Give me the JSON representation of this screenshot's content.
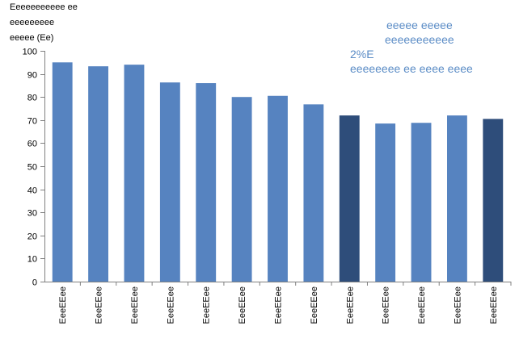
{
  "chart_data": {
    "type": "bar",
    "ylabel_lines": [
      "Eeeeeeeeeee ee",
      "eeeeeeeee",
      "eeeee (Ee)"
    ],
    "xlabel": "",
    "ylim": [
      0,
      100
    ],
    "yticks": [
      0,
      10,
      20,
      30,
      40,
      50,
      60,
      70,
      80,
      90,
      100
    ],
    "grid": false,
    "legend": "none",
    "categories": [
      "EeeEEee",
      "EeeEEee",
      "EeeEEee",
      "EeeEEee",
      "EeeEEee",
      "EeeEEee",
      "EeeEEee",
      "EeeEEee",
      "EeeEEee",
      "EeeEEee",
      "EeeEEee",
      "EeeEEee",
      "EeeEEee"
    ],
    "values": [
      95,
      93.3,
      94,
      86.3,
      86,
      80,
      80.5,
      76.8,
      72,
      68.5,
      68.8,
      72,
      70.5
    ],
    "highlighted_bars": [
      8,
      12
    ],
    "annotations": [
      {
        "lines": [
          "eeeee eeeee",
          "eeeeeeeeeee"
        ]
      },
      {
        "lines": [
          "2%E",
          "eeeeeeee ee eeee eeee"
        ]
      }
    ],
    "colors": {
      "bar": "#5683C0",
      "bar_highlight": "#2E4D7A",
      "annotation_text": "#5B8CC6",
      "axis": "#808080",
      "tick_text": "#000000"
    }
  }
}
